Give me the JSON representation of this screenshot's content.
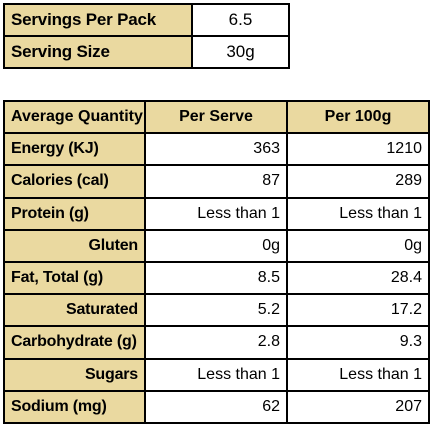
{
  "summary": {
    "servings_per_pack_label": "Servings Per Pack",
    "servings_per_pack_value": "6.5",
    "serving_size_label": "Serving Size",
    "serving_size_value": "30g"
  },
  "nutrition": {
    "headers": [
      "Average Quantity",
      "Per Serve",
      "Per 100g"
    ],
    "rows": [
      {
        "label": "Energy (KJ)",
        "per_serve": "363",
        "per_100g": "1210"
      },
      {
        "label": "Calories (cal)",
        "per_serve": "87",
        "per_100g": "289"
      },
      {
        "label": "Protein (g)",
        "per_serve": "Less than 1",
        "per_100g": "Less than 1"
      },
      {
        "label": "Gluten",
        "per_serve": "0g",
        "per_100g": "0g"
      },
      {
        "label": "Fat, Total (g)",
        "per_serve": "8.5",
        "per_100g": "28.4"
      },
      {
        "label": "Saturated",
        "per_serve": "5.2",
        "per_100g": "17.2"
      },
      {
        "label": "Carbohydrate (g)",
        "per_serve": "2.8",
        "per_100g": "9.3"
      },
      {
        "label": "Sugars",
        "per_serve": "Less than 1",
        "per_100g": "Less than 1"
      },
      {
        "label": "Sodium (mg)",
        "per_serve": "62",
        "per_100g": "207"
      }
    ]
  },
  "colors": {
    "label_background": "#ead9a0",
    "border": "#000000"
  }
}
